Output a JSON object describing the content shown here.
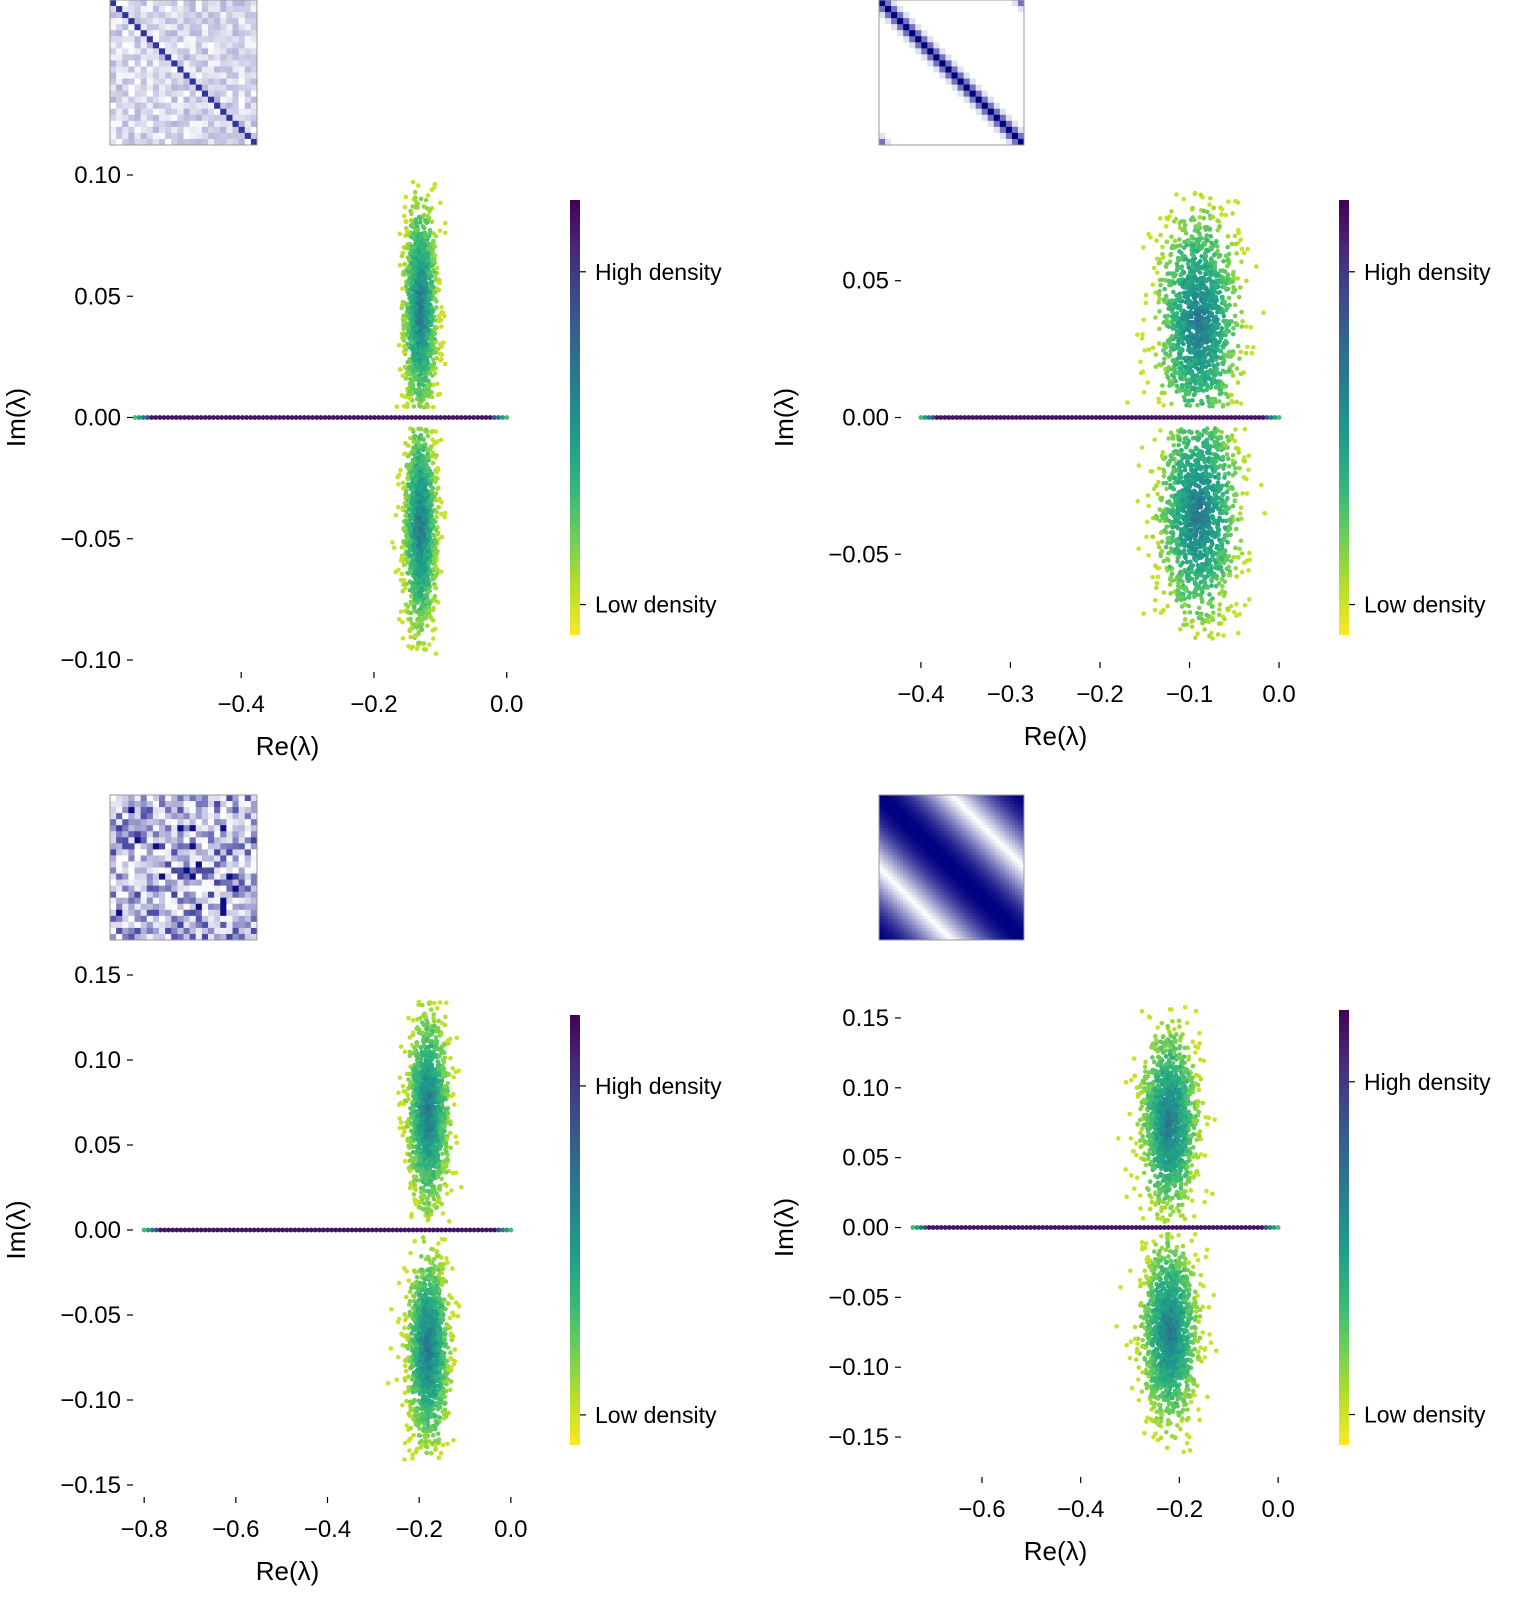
{
  "colors": {
    "viridis": [
      "#fde725",
      "#b5de2b",
      "#6ece58",
      "#35b779",
      "#1f9e89",
      "#26828e",
      "#31688e",
      "#3e4989",
      "#482878",
      "#440154"
    ],
    "matrix_high": "#000080",
    "matrix_low": "#ffffff"
  },
  "chart_data": [
    {
      "type": "scatter",
      "title": "",
      "xlabel": "Re(λ)",
      "ylabel": "Im(λ)",
      "xlim": [
        -0.56,
        0.02
      ],
      "ylim": [
        -0.1,
        0.1
      ],
      "xticks": [
        -0.4,
        -0.2,
        0.0
      ],
      "xtick_labels": [
        "−0.4",
        "−0.2",
        "0.0"
      ],
      "yticks": [
        0.1,
        0.05,
        0.0,
        -0.05,
        -0.1
      ],
      "ytick_labels": [
        "0.10",
        "0.05",
        "0.00",
        "−0.05",
        "−0.10"
      ],
      "colorbar": {
        "high_label": "High density",
        "low_label": "Low density"
      },
      "real_axis_segment": [
        -0.56,
        0.0
      ],
      "clusters": [
        {
          "center_re": -0.13,
          "center_im": 0.045,
          "spread_re": 0.012,
          "spread_im": 0.022,
          "max_im": 0.098
        },
        {
          "center_re": -0.13,
          "center_im": -0.045,
          "spread_re": 0.012,
          "spread_im": 0.022,
          "max_im": 0.098
        }
      ],
      "inset_matrix": "random-banded"
    },
    {
      "type": "scatter",
      "title": "",
      "xlabel": "Re(λ)",
      "ylabel": "Im(λ)",
      "xlim": [
        -0.42,
        0.01
      ],
      "ylim": [
        -0.085,
        0.085
      ],
      "xticks": [
        -0.4,
        -0.3,
        -0.2,
        -0.1,
        0.0
      ],
      "xtick_labels": [
        "−0.4",
        "−0.3",
        "−0.2",
        "−0.1",
        "0.0"
      ],
      "yticks": [
        0.05,
        0.0,
        -0.05
      ],
      "ytick_labels": [
        "0.05",
        "0.00",
        "−0.05"
      ],
      "colorbar": {
        "high_label": "High density",
        "low_label": "Low density"
      },
      "real_axis_segment": [
        -0.4,
        0.0
      ],
      "clusters": [
        {
          "center_re": -0.09,
          "center_im": 0.035,
          "spread_re": 0.022,
          "spread_im": 0.02,
          "max_im": 0.082
        },
        {
          "center_re": -0.09,
          "center_im": -0.035,
          "spread_re": 0.022,
          "spread_im": 0.02,
          "max_im": 0.082
        }
      ],
      "inset_matrix": "banded"
    },
    {
      "type": "scatter",
      "title": "",
      "xlabel": "Re(λ)",
      "ylabel": "Im(λ)",
      "xlim": [
        -0.82,
        0.02
      ],
      "ylim": [
        -0.15,
        0.15
      ],
      "xticks": [
        -0.8,
        -0.6,
        -0.4,
        -0.2,
        0.0
      ],
      "xtick_labels": [
        "−0.8",
        "−0.6",
        "−0.4",
        "−0.2",
        "0.0"
      ],
      "yticks": [
        0.15,
        0.1,
        0.05,
        0.0,
        -0.05,
        -0.1,
        -0.15
      ],
      "ytick_labels": [
        "0.15",
        "0.10",
        "0.05",
        "0.00",
        "−0.05",
        "−0.10",
        "−0.15"
      ],
      "colorbar": {
        "high_label": "High density",
        "low_label": "Low density"
      },
      "real_axis_segment": [
        -0.8,
        0.0
      ],
      "clusters": [
        {
          "center_re": -0.18,
          "center_im": 0.07,
          "spread_re": 0.022,
          "spread_im": 0.028,
          "max_im": 0.136
        },
        {
          "center_re": -0.18,
          "center_im": -0.07,
          "spread_re": 0.022,
          "spread_im": 0.028,
          "max_im": 0.136
        }
      ],
      "inset_matrix": "random-dense"
    },
    {
      "type": "scatter",
      "title": "",
      "xlabel": "Re(λ)",
      "ylabel": "Im(λ)",
      "xlim": [
        -0.76,
        0.02
      ],
      "ylim": [
        -0.17,
        0.17
      ],
      "xticks": [
        -0.6,
        -0.4,
        -0.2,
        0.0
      ],
      "xtick_labels": [
        "−0.6",
        "−0.4",
        "−0.2",
        "0.0"
      ],
      "yticks": [
        0.15,
        0.1,
        0.05,
        0.0,
        -0.05,
        -0.1,
        -0.15
      ],
      "ytick_labels": [
        "0.15",
        "0.10",
        "0.05",
        "0.00",
        "−0.05",
        "−0.10",
        "−0.15"
      ],
      "colorbar": {
        "high_label": "High density",
        "low_label": "Low density"
      },
      "real_axis_segment": [
        -0.74,
        0.0
      ],
      "clusters": [
        {
          "center_re": -0.22,
          "center_im": 0.075,
          "spread_re": 0.028,
          "spread_im": 0.032,
          "max_im": 0.162
        },
        {
          "center_re": -0.22,
          "center_im": -0.075,
          "spread_re": 0.028,
          "spread_im": 0.032,
          "max_im": 0.162
        }
      ],
      "inset_matrix": "smooth-periodic"
    }
  ]
}
